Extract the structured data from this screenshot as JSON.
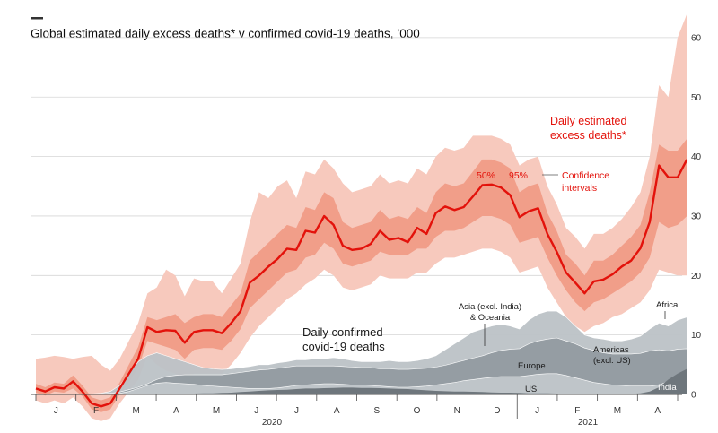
{
  "chart_data": {
    "type": "area",
    "title": "Global estimated daily excess deaths* v confirmed covid-19 deaths, ’000",
    "yticks": [
      0,
      10,
      20,
      30,
      40,
      50,
      60
    ],
    "ylim": [
      0,
      63
    ],
    "months": [
      "J",
      "F",
      "M",
      "A",
      "M",
      "J",
      "J",
      "A",
      "S",
      "O",
      "N",
      "D",
      "J",
      "F",
      "M",
      "A"
    ],
    "years": [
      "2020",
      "2021"
    ],
    "week_range": [
      0,
      69
    ],
    "excess": {
      "name": "Daily estimated excess deaths*",
      "name_line1": "Daily estimated",
      "name_line2": "excess deaths*",
      "central": [
        1.0,
        0.5,
        1.2,
        1.0,
        2.2,
        0.5,
        -1.5,
        -2.0,
        -1.5,
        1.0,
        3.5,
        6.0,
        11.3,
        10.5,
        10.8,
        10.7,
        8.7,
        10.5,
        10.8,
        10.8,
        10.3,
        12.0,
        14.0,
        18.8,
        20.0,
        21.5,
        22.8,
        24.5,
        24.3,
        27.5,
        27.2,
        30.0,
        28.5,
        25.0,
        24.3,
        24.5,
        25.3,
        27.5,
        26.0,
        26.3,
        25.6,
        28.0,
        27.0,
        30.5,
        31.6,
        31.0,
        31.5,
        33.3,
        35.2,
        35.3,
        34.8,
        33.5,
        29.8,
        30.8,
        31.3,
        27.0,
        24.0,
        20.5,
        18.8,
        17.0,
        19.0,
        19.3,
        20.2,
        21.5,
        22.5,
        24.6,
        29.0,
        38.5,
        36.5,
        36.5,
        39.5
      ],
      "ci50_lo": [
        0.3,
        -0.2,
        0.5,
        0.3,
        1.0,
        -0.3,
        -2.5,
        -3.0,
        -2.5,
        0.0,
        2.0,
        4.5,
        9.0,
        8.5,
        8.0,
        7.5,
        6.0,
        7.5,
        7.8,
        7.8,
        7.5,
        9.0,
        11.0,
        14.5,
        16.0,
        17.5,
        19.0,
        20.5,
        21.0,
        23.0,
        23.5,
        25.5,
        24.5,
        22.0,
        21.5,
        22.0,
        22.5,
        24.0,
        23.5,
        23.5,
        23.5,
        24.5,
        24.5,
        26.5,
        27.5,
        27.5,
        28.0,
        29.0,
        30.0,
        30.0,
        29.5,
        28.5,
        25.5,
        26.0,
        26.5,
        23.0,
        20.0,
        17.5,
        15.5,
        14.0,
        15.5,
        16.0,
        17.0,
        18.0,
        19.0,
        20.5,
        23.0,
        29.0,
        28.0,
        28.5,
        30.0
      ],
      "ci50_hi": [
        1.8,
        1.2,
        2.0,
        1.8,
        3.2,
        1.5,
        -0.5,
        -1.0,
        -0.5,
        2.0,
        5.0,
        8.0,
        13.0,
        12.5,
        13.0,
        13.5,
        12.0,
        13.0,
        13.5,
        13.5,
        13.0,
        15.0,
        17.0,
        22.5,
        24.0,
        25.5,
        27.0,
        28.5,
        28.0,
        31.5,
        31.0,
        34.0,
        33.0,
        29.0,
        28.0,
        28.5,
        29.0,
        31.0,
        29.5,
        30.0,
        29.5,
        31.5,
        30.5,
        34.0,
        35.5,
        35.0,
        35.5,
        37.5,
        39.5,
        39.5,
        39.0,
        38.0,
        34.0,
        35.0,
        35.5,
        30.5,
        27.5,
        23.5,
        22.0,
        20.0,
        22.5,
        22.5,
        23.5,
        25.0,
        26.5,
        28.5,
        34.0,
        42.0,
        41.0,
        41.0,
        43.0
      ],
      "ci95_lo": [
        -1.0,
        -1.5,
        -1.0,
        -1.5,
        -0.5,
        -2.0,
        -4.0,
        -4.5,
        -4.0,
        -1.5,
        0.5,
        2.5,
        6.5,
        5.0,
        4.0,
        3.5,
        2.0,
        3.5,
        3.5,
        3.5,
        3.5,
        5.0,
        7.0,
        9.5,
        11.5,
        13.0,
        14.5,
        16.0,
        17.0,
        18.5,
        19.5,
        21.0,
        20.0,
        18.0,
        17.5,
        18.0,
        18.5,
        20.0,
        19.5,
        19.5,
        19.5,
        20.5,
        20.5,
        22.0,
        23.0,
        23.0,
        23.5,
        24.0,
        24.5,
        24.5,
        24.0,
        23.0,
        20.5,
        21.0,
        21.5,
        18.0,
        15.5,
        13.0,
        11.5,
        10.5,
        11.5,
        12.0,
        13.0,
        13.5,
        14.5,
        15.5,
        17.5,
        21.0,
        20.5,
        20.0,
        20.0
      ],
      "ci95_hi": [
        6.0,
        6.2,
        6.5,
        6.3,
        6.0,
        6.3,
        6.5,
        5.0,
        4.0,
        6.0,
        9.0,
        12.0,
        17.0,
        18.0,
        21.0,
        20.0,
        16.5,
        19.5,
        19.0,
        19.0,
        17.0,
        19.5,
        22.0,
        29.0,
        34.0,
        33.0,
        35.0,
        36.0,
        33.0,
        37.5,
        37.0,
        39.5,
        38.0,
        35.5,
        34.0,
        34.5,
        35.0,
        37.0,
        35.5,
        36.0,
        35.5,
        38.0,
        37.0,
        40.0,
        41.5,
        41.0,
        41.5,
        43.5,
        43.5,
        43.5,
        43.0,
        42.0,
        38.5,
        39.5,
        40.0,
        35.0,
        32.0,
        28.0,
        26.5,
        24.5,
        27.0,
        27.0,
        28.0,
        29.5,
        31.5,
        34.0,
        40.0,
        52.0,
        50.0,
        60.0,
        64.0
      ]
    },
    "confirmed": {
      "name_line1": "Daily confirmed",
      "name_line2": "covid-19 deaths",
      "total": [
        0,
        0,
        0,
        0,
        0,
        0,
        0.1,
        0.2,
        0.5,
        1.5,
        3.5,
        5.5,
        6.5,
        7.0,
        6.5,
        6.0,
        5.5,
        5.0,
        4.5,
        4.3,
        4.2,
        4.3,
        4.5,
        4.7,
        5.0,
        5.0,
        5.3,
        5.5,
        5.8,
        5.8,
        6.0,
        6.0,
        6.2,
        6.0,
        5.7,
        5.5,
        5.5,
        5.5,
        5.7,
        5.5,
        5.5,
        5.7,
        6.0,
        6.5,
        7.5,
        8.5,
        9.5,
        10.5,
        11.0,
        11.5,
        11.8,
        11.5,
        11.0,
        12.5,
        13.5,
        14.0,
        14.0,
        13.0,
        11.5,
        10.0,
        9.5,
        9.3,
        9.0,
        9.0,
        9.3,
        9.8,
        11.0,
        12.0,
        11.5,
        12.5,
        13.0
      ],
      "americas": [
        0,
        0,
        0,
        0,
        0,
        0,
        0,
        0.1,
        0.2,
        0.4,
        0.8,
        1.2,
        1.8,
        2.5,
        3.0,
        3.2,
        3.3,
        3.3,
        3.3,
        3.3,
        3.3,
        3.5,
        3.7,
        3.9,
        4.1,
        4.2,
        4.4,
        4.6,
        4.8,
        4.8,
        4.8,
        4.8,
        4.8,
        4.7,
        4.6,
        4.5,
        4.5,
        4.3,
        4.3,
        4.2,
        4.2,
        4.3,
        4.4,
        4.6,
        4.9,
        5.3,
        5.7,
        6.1,
        6.5,
        7.0,
        7.4,
        7.6,
        7.7,
        8.5,
        9.0,
        9.3,
        9.5,
        9.0,
        8.5,
        7.8,
        7.4,
        7.0,
        6.8,
        6.8,
        6.8,
        6.9,
        7.3,
        7.5,
        7.3,
        7.6,
        7.7
      ],
      "us_india": [
        0,
        0,
        0,
        0,
        0,
        0,
        0,
        0,
        0.1,
        0.2,
        0.5,
        1.0,
        1.5,
        1.9,
        2.0,
        1.9,
        1.8,
        1.7,
        1.5,
        1.4,
        1.3,
        1.2,
        1.1,
        1.0,
        1.0,
        1.0,
        1.1,
        1.3,
        1.5,
        1.6,
        1.7,
        1.8,
        1.8,
        1.7,
        1.6,
        1.6,
        1.5,
        1.4,
        1.3,
        1.2,
        1.2,
        1.3,
        1.4,
        1.6,
        1.8,
        2.0,
        2.3,
        2.5,
        2.7,
        2.9,
        3.0,
        3.0,
        3.0,
        3.2,
        3.4,
        3.5,
        3.5,
        3.2,
        2.8,
        2.4,
        2.0,
        1.8,
        1.6,
        1.5,
        1.4,
        1.4,
        1.4,
        1.6,
        2.2,
        2.8,
        3.2
      ],
      "india": [
        0,
        0,
        0,
        0,
        0,
        0,
        0,
        0,
        0,
        0,
        0,
        0,
        0,
        0.05,
        0.08,
        0.1,
        0.12,
        0.15,
        0.18,
        0.2,
        0.25,
        0.3,
        0.4,
        0.5,
        0.6,
        0.7,
        0.75,
        0.8,
        0.9,
        1.0,
        1.0,
        1.05,
        1.1,
        1.15,
        1.15,
        1.1,
        1.1,
        1.05,
        1.0,
        0.95,
        0.9,
        0.8,
        0.7,
        0.6,
        0.55,
        0.5,
        0.5,
        0.45,
        0.4,
        0.35,
        0.3,
        0.3,
        0.25,
        0.2,
        0.2,
        0.18,
        0.15,
        0.15,
        0.12,
        0.1,
        0.1,
        0.1,
        0.1,
        0.1,
        0.12,
        0.2,
        0.5,
        1.2,
        2.5,
        3.5,
        4.3
      ]
    },
    "labels": {
      "ci50": "50%",
      "ci95": "95%",
      "ci_line1": "Confidence",
      "ci_line2": "intervals",
      "asia_line1": "Asia (excl. India)",
      "asia_line2": "& Oceania",
      "africa": "Africa",
      "americas_line1": "Americas",
      "americas_line2": "(excl. US)",
      "europe": "Europe",
      "us": "US",
      "india": "India"
    },
    "colors": {
      "ci95": "#f7c9bd",
      "ci50": "#f19e89",
      "central": "#e3120b",
      "total_area": "#bcc2c6",
      "americas_area": "#959da3",
      "us_area": "#bfc5c9",
      "india_area": "#6e767c",
      "grid": "#d6d6d6",
      "axis": "#4d4d4d"
    }
  }
}
